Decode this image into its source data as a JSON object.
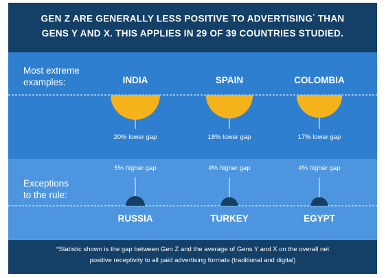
{
  "title": {
    "line1": "GEN Z ARE GENERALLY LESS POSITIVE TO ADVERTISING",
    "asterisk": "*",
    "line1_end": "THAN",
    "line2": "GENS Y AND X. THIS APPLIES IN 29 OF 39 COUNTRIES STUDIED."
  },
  "sections": {
    "extreme_label": [
      "Most extreme",
      "examples:"
    ],
    "exceptions_label": [
      "Exceptions",
      "to the rule:"
    ]
  },
  "colors": {
    "header_bg": "#143f66",
    "top_section_bg": "#2f7fd0",
    "bottom_section_bg": "#4d96df",
    "lower_gap_fill": "#f5b31b",
    "higher_gap_fill": "#173f63"
  },
  "chart_data": {
    "type": "semicircle-comparison",
    "unit": "% gap (Gen Z vs average of Gens Y and X)",
    "lower": [
      {
        "country": "INDIA",
        "value": 20,
        "label": "20% lower gap"
      },
      {
        "country": "SPAIN",
        "value": 18,
        "label": "18% lower gap"
      },
      {
        "country": "COLOMBIA",
        "value": 17,
        "label": "17% lower gap"
      }
    ],
    "higher": [
      {
        "country": "RUSSIA",
        "value": 5,
        "label": "5% higher gap"
      },
      {
        "country": "TURKEY",
        "value": 4,
        "label": "4% higher gap"
      },
      {
        "country": "EGYPT",
        "value": 4,
        "label": "4% higher gap"
      }
    ]
  },
  "footnote": {
    "line1": "*Statistic shown is the gap between Gen Z and the average of Gens Y and X on the overall net",
    "line2": "positive receptivity to all  paid advertising formats (traditional and digital)"
  }
}
